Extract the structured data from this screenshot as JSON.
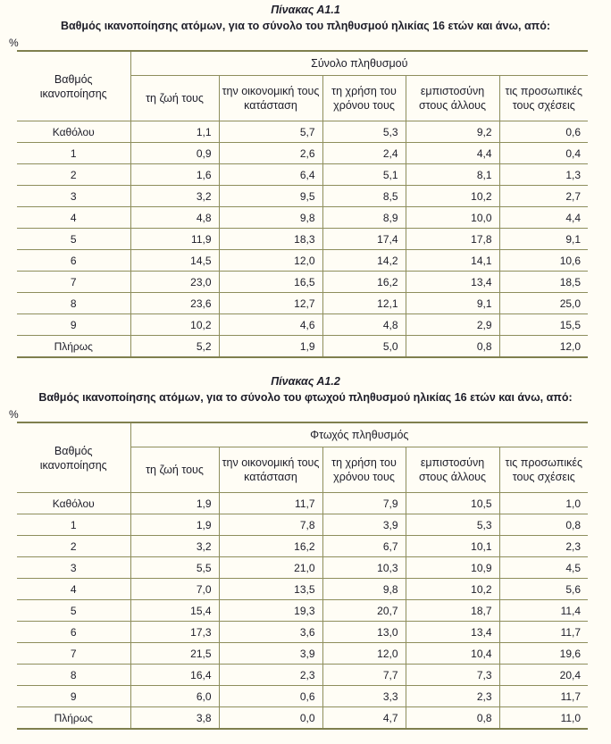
{
  "page": {
    "background": "#fffdf5",
    "border_color": "#8e8e5c",
    "thick_border_color": "#7f7f4e",
    "text_color": "#1d1d28"
  },
  "tables": [
    {
      "title": "Πίνακας Α1.1",
      "subtitle": "Βαθμός ικανοποίησης ατόμων, για το σύνολο του πληθυσμού ηλικίας 16 ετών και άνω, από:",
      "unit_label": "%",
      "row_header": "Βαθμός ικανοποίησης",
      "group_header": "Σύνολο πληθυσμού",
      "columns": [
        "τη ζωή τους",
        "την οικονομική τους κατάσταση",
        "τη χρήση του χρόνου τους",
        "εμπιστοσύνη στους άλλους",
        "τις προσωπικές τους σχέσεις"
      ],
      "rows": [
        {
          "label": "Καθόλου",
          "values": [
            "1,1",
            "5,7",
            "5,3",
            "9,2",
            "0,6"
          ]
        },
        {
          "label": "1",
          "values": [
            "0,9",
            "2,6",
            "2,4",
            "4,4",
            "0,4"
          ]
        },
        {
          "label": "2",
          "values": [
            "1,6",
            "6,4",
            "5,1",
            "8,1",
            "1,3"
          ]
        },
        {
          "label": "3",
          "values": [
            "3,2",
            "9,5",
            "8,5",
            "10,2",
            "2,7"
          ]
        },
        {
          "label": "4",
          "values": [
            "4,8",
            "9,8",
            "8,9",
            "10,0",
            "4,4"
          ]
        },
        {
          "label": "5",
          "values": [
            "11,9",
            "18,3",
            "17,4",
            "17,8",
            "9,1"
          ]
        },
        {
          "label": "6",
          "values": [
            "14,5",
            "12,0",
            "14,2",
            "14,1",
            "10,6"
          ]
        },
        {
          "label": "7",
          "values": [
            "23,0",
            "16,5",
            "16,2",
            "13,4",
            "18,5"
          ]
        },
        {
          "label": "8",
          "values": [
            "23,6",
            "12,7",
            "12,1",
            "9,1",
            "25,0"
          ]
        },
        {
          "label": "9",
          "values": [
            "10,2",
            "4,6",
            "4,8",
            "2,9",
            "15,5"
          ]
        },
        {
          "label": "Πλήρως",
          "values": [
            "5,2",
            "1,9",
            "5,0",
            "0,8",
            "12,0"
          ]
        }
      ]
    },
    {
      "title": "Πίνακας Α1.2",
      "subtitle": "Βαθμός ικανοποίησης ατόμων, για το σύνολο του φτωχού πληθυσμού ηλικίας 16 ετών και άνω, από:",
      "unit_label": "%",
      "row_header": "Βαθμός ικανοποίησης",
      "group_header": "Φτωχός πληθυσμός",
      "columns": [
        "τη ζωή τους",
        "την οικονομική τους κατάσταση",
        "τη χρήση του χρόνου τους",
        "εμπιστοσύνη στους άλλους",
        "τις προσωπικές τους σχέσεις"
      ],
      "rows": [
        {
          "label": "Καθόλου",
          "values": [
            "1,9",
            "11,7",
            "7,9",
            "10,5",
            "1,0"
          ]
        },
        {
          "label": "1",
          "values": [
            "1,9",
            "7,8",
            "3,9",
            "5,3",
            "0,8"
          ]
        },
        {
          "label": "2",
          "values": [
            "3,2",
            "16,2",
            "6,7",
            "10,1",
            "2,3"
          ]
        },
        {
          "label": "3",
          "values": [
            "5,5",
            "21,0",
            "10,3",
            "10,9",
            "4,5"
          ]
        },
        {
          "label": "4",
          "values": [
            "7,0",
            "13,5",
            "9,8",
            "10,2",
            "5,6"
          ]
        },
        {
          "label": "5",
          "values": [
            "15,4",
            "19,3",
            "20,7",
            "18,7",
            "11,4"
          ]
        },
        {
          "label": "6",
          "values": [
            "17,3",
            "3,6",
            "13,0",
            "13,4",
            "11,7"
          ]
        },
        {
          "label": "7",
          "values": [
            "21,5",
            "3,9",
            "12,0",
            "10,4",
            "19,6"
          ]
        },
        {
          "label": "8",
          "values": [
            "16,4",
            "2,3",
            "7,7",
            "7,3",
            "20,4"
          ]
        },
        {
          "label": "9",
          "values": [
            "6,0",
            "0,6",
            "3,3",
            "2,3",
            "11,7"
          ]
        },
        {
          "label": "Πλήρως",
          "values": [
            "3,8",
            "0,0",
            "4,7",
            "0,8",
            "11,0"
          ]
        }
      ]
    }
  ]
}
